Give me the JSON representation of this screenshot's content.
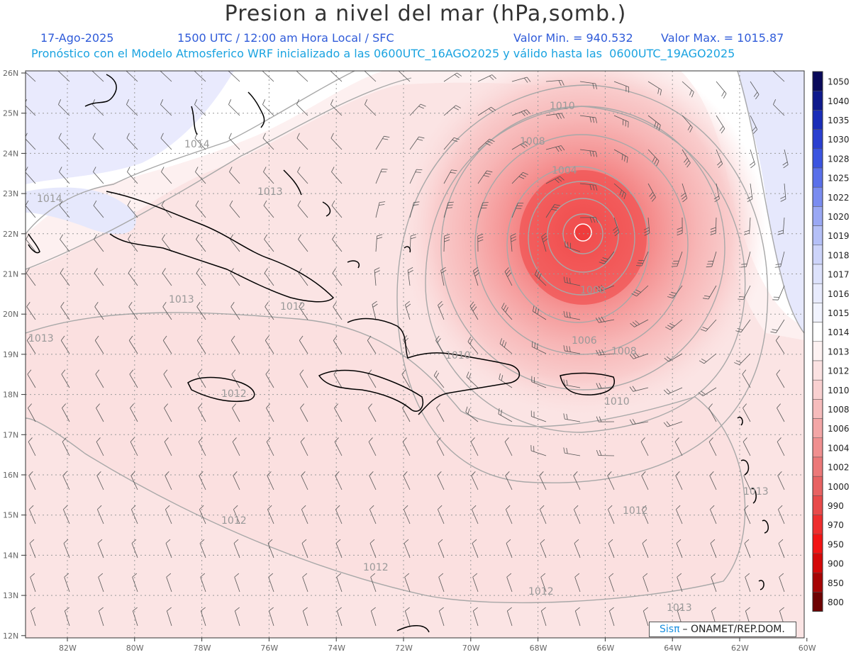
{
  "header": {
    "title": "Presion a nivel del mar (hPa,somb.)",
    "date": "17-Ago-2025",
    "time": "1500 UTC / 12:00 am Hora Local / SFC",
    "min": "Valor Min. = 940.532",
    "max": "Valor Max. = 1015.87",
    "model_info": "Pronóstico con el Modelo Atmosferico WRF inicializado a las 0600UTC_16AGO2025 y válido hasta las  0600UTC_19AGO2025"
  },
  "axes": {
    "lat_labels": [
      "26N",
      "25N",
      "24N",
      "23N",
      "22N",
      "21N",
      "20N",
      "19N",
      "18N",
      "17N",
      "16N",
      "15N",
      "14N",
      "13N",
      "12N"
    ],
    "lon_labels": [
      "82W",
      "80W",
      "78W",
      "76W",
      "74W",
      "72W",
      "70W",
      "68W",
      "66W",
      "64W",
      "62W",
      "60W"
    ]
  },
  "colorbar": {
    "levels": [
      "1050",
      "1040",
      "1035",
      "1030",
      "1028",
      "1025",
      "1022",
      "1020",
      "1019",
      "1018",
      "1017",
      "1016",
      "1015",
      "1014",
      "1013",
      "1012",
      "1010",
      "1008",
      "1006",
      "1004",
      "1002",
      "1000",
      "990",
      "970",
      "950",
      "900",
      "850",
      "800"
    ],
    "colors": [
      "#0a0a5a",
      "#0f1a8c",
      "#1a2db8",
      "#2a3fd0",
      "#3b54e0",
      "#5a70ea",
      "#7a8cf0",
      "#9aa8f4",
      "#b5c0f7",
      "#cdd4fa",
      "#dde2fc",
      "#e8ebfd",
      "#f1f3fe",
      "#ffffff",
      "#fdf2f2",
      "#fbe2e2",
      "#f9d0d0",
      "#f6bcbc",
      "#f3a6a6",
      "#f08f8f",
      "#ec7878",
      "#e86262",
      "#e84a4a",
      "#ee2e2e",
      "#f21414",
      "#d40808",
      "#a60404",
      "#6e0202"
    ]
  },
  "isobars": [
    {
      "label": "1010",
      "near": "top-center"
    },
    {
      "label": "1008",
      "near": "storm-nw"
    },
    {
      "label": "1004",
      "near": "storm-n"
    },
    {
      "label": "1000",
      "near": "storm-s"
    },
    {
      "label": "1006",
      "near": "storm-s"
    },
    {
      "label": "1008",
      "near": "storm-se"
    },
    {
      "label": "1010",
      "near": "puerto-rico"
    },
    {
      "label": "1013",
      "near": "bahamas"
    },
    {
      "label": "1014",
      "near": "cuba-west"
    },
    {
      "label": "1014",
      "near": "florida"
    },
    {
      "label": "1013",
      "near": "cuba-south"
    },
    {
      "label": "1012",
      "near": "cuba-east"
    },
    {
      "label": "1013",
      "near": "west-edge"
    },
    {
      "label": "1012",
      "near": "jamaica"
    },
    {
      "label": "1010",
      "near": "hispaniola"
    },
    {
      "label": "1012",
      "near": "caribbean-w"
    },
    {
      "label": "1012",
      "near": "caribbean-c"
    },
    {
      "label": "1012",
      "near": "caribbean-s"
    },
    {
      "label": "1012",
      "near": "caribbean-e"
    },
    {
      "label": "1013",
      "near": "lesser-antilles"
    },
    {
      "label": "1013",
      "near": "southeast"
    }
  ],
  "credit": {
    "brand": "Sisπ",
    "text": "– ONAMET/REP.DOM."
  }
}
